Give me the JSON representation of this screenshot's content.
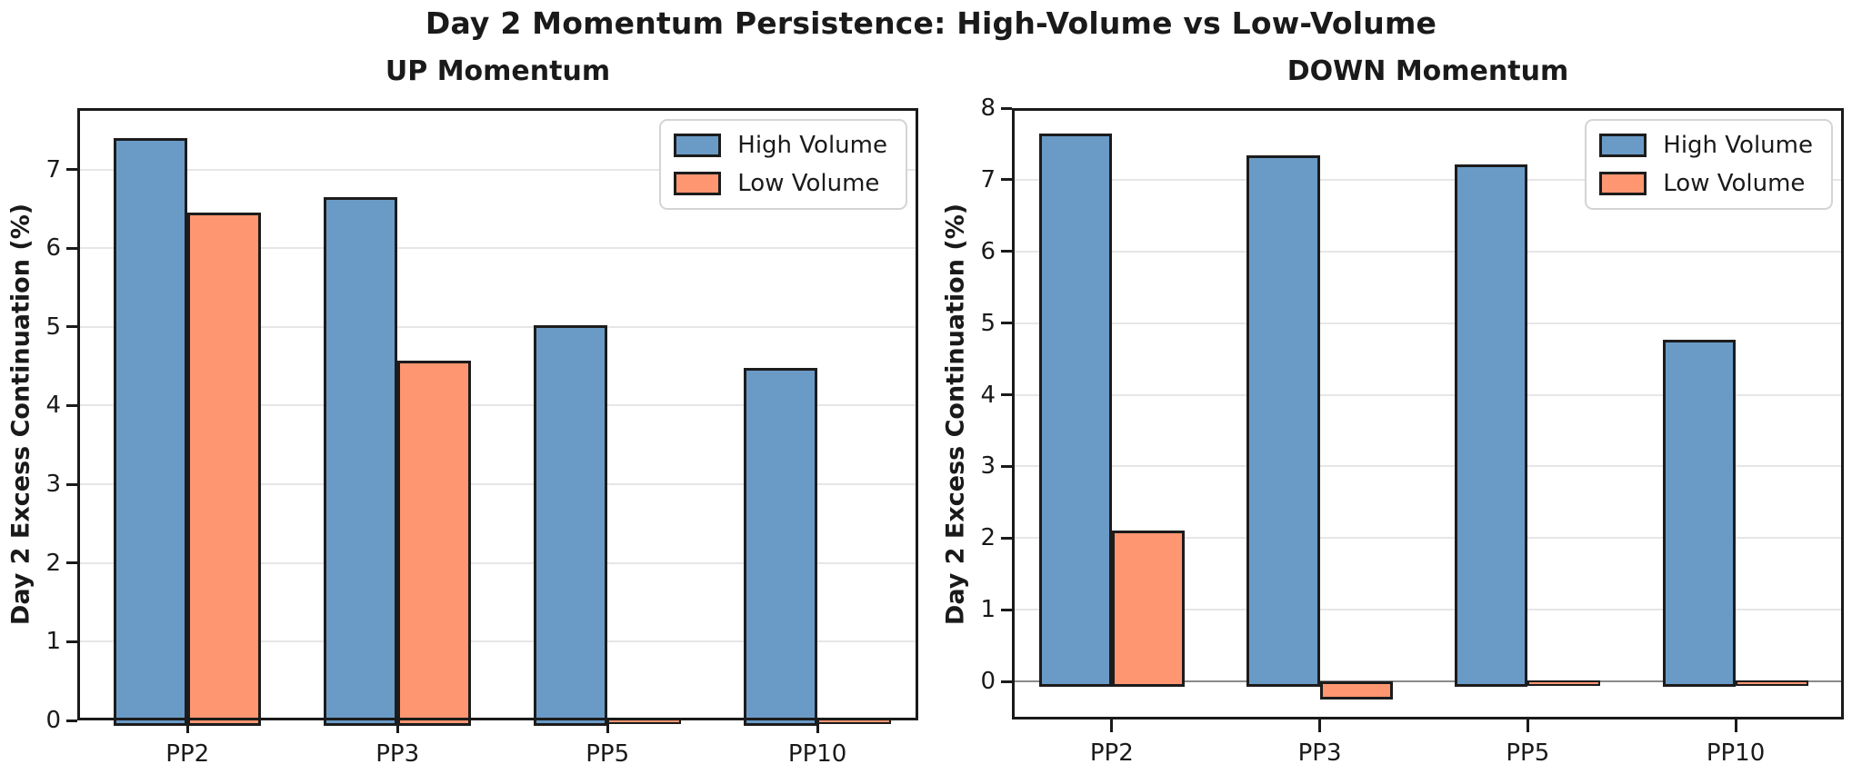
{
  "title": "Day 2 Momentum Persistence: High-Volume vs Low-Volume",
  "colors": {
    "high_volume": "#6A9BC7",
    "low_volume": "#FF9672",
    "bar_edge": "#1c1c1c",
    "grid": "#e6e6e6",
    "zero_line": "#8a8a8a",
    "spine": "#1a1a1a",
    "background": "#ffffff"
  },
  "chart_data": [
    {
      "id": "up-momentum",
      "type": "bar",
      "title": "UP Momentum",
      "ylabel": "Day 2 Excess Continuation (%)",
      "categories": [
        "PP2",
        "PP3",
        "PP5",
        "PP10"
      ],
      "series": [
        {
          "name": "High Volume",
          "color_key": "high_volume",
          "values": [
            7.4,
            6.65,
            5.02,
            4.48
          ]
        },
        {
          "name": "Low Volume",
          "color_key": "low_volume",
          "values": [
            6.45,
            4.57,
            0.02,
            0.02
          ]
        }
      ],
      "yticks": [
        0,
        1,
        2,
        3,
        4,
        5,
        6,
        7
      ],
      "ylim": [
        0,
        7.78
      ],
      "xlim": [
        -0.525,
        3.48
      ],
      "bar_width": 0.35,
      "grid": true,
      "zero_line": false,
      "legend_position": "upper right"
    },
    {
      "id": "down-momentum",
      "type": "bar",
      "title": "DOWN Momentum",
      "ylabel": "Day 2 Excess Continuation (%)",
      "categories": [
        "PP2",
        "PP3",
        "PP5",
        "PP10"
      ],
      "series": [
        {
          "name": "High Volume",
          "color_key": "high_volume",
          "values": [
            7.64,
            7.34,
            7.21,
            4.77
          ]
        },
        {
          "name": "Low Volume",
          "color_key": "low_volume",
          "values": [
            2.1,
            -0.18,
            0.02,
            0.02
          ]
        }
      ],
      "yticks": [
        0,
        1,
        2,
        3,
        4,
        5,
        6,
        7,
        8
      ],
      "ylim": [
        -0.53,
        8
      ],
      "xlim": [
        -0.48,
        3.52
      ],
      "bar_width": 0.35,
      "grid": true,
      "zero_line": true,
      "legend_position": "upper right"
    }
  ]
}
